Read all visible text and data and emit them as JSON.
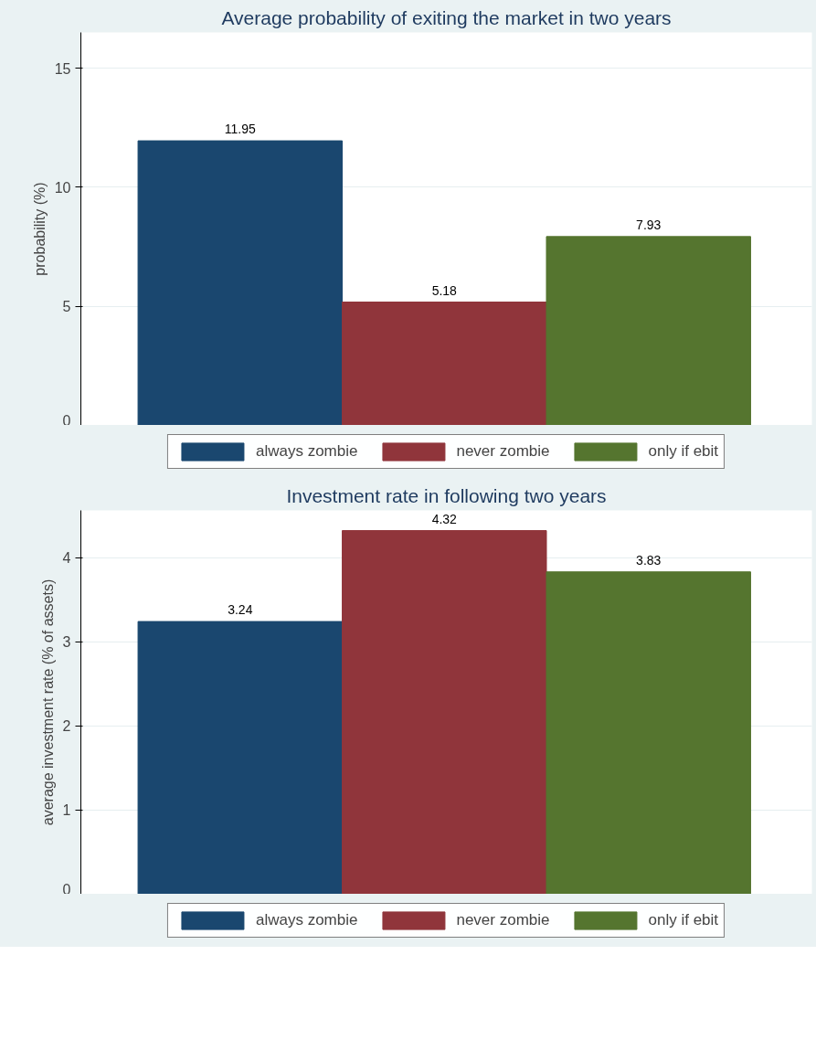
{
  "chart_data": [
    {
      "type": "bar",
      "title": "Average probability of exiting the market in two years",
      "ylabel": "probability (%)",
      "categories": [
        null
      ],
      "series": [
        {
          "name": "always zombie",
          "color": "#1a476f",
          "values": [
            11.95
          ]
        },
        {
          "name": "never zombie",
          "color": "#90353b",
          "values": [
            5.18
          ]
        },
        {
          "name": "only if ebit",
          "color": "#55752f",
          "values": [
            7.93
          ]
        }
      ],
      "ylim": [
        0,
        16.5
      ],
      "yticks": [
        0,
        5,
        10,
        15
      ],
      "grid": "y",
      "legend": "bottom",
      "data_labels": true
    },
    {
      "type": "bar",
      "title": "Investment rate in following two years",
      "ylabel": "average investment rate (% of assets)",
      "categories": [
        null
      ],
      "series": [
        {
          "name": "always zombie",
          "color": "#1a476f",
          "values": [
            3.24
          ]
        },
        {
          "name": "never zombie",
          "color": "#90353b",
          "values": [
            4.32
          ]
        },
        {
          "name": "only if ebit",
          "color": "#55752f",
          "values": [
            3.83
          ]
        }
      ],
      "ylim": [
        0,
        4.56
      ],
      "yticks": [
        0,
        1,
        2,
        3,
        4
      ],
      "grid": "y",
      "legend": "bottom",
      "data_labels": true
    }
  ]
}
